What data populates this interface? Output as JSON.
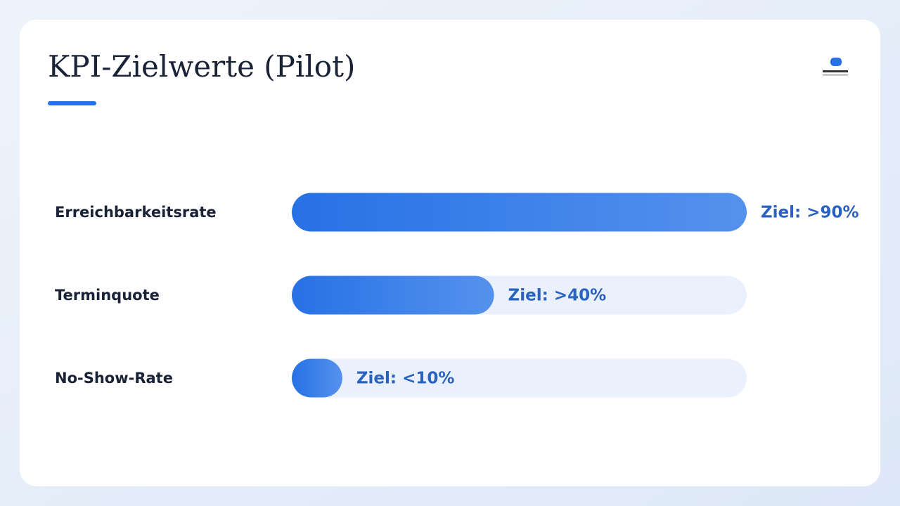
{
  "chart_data": {
    "type": "bar",
    "orientation": "horizontal",
    "title": "KPI-Zielwerte (Pilot)",
    "categories": [
      "Erreichbarkeitsrate",
      "Terminquote",
      "No-Show-Rate"
    ],
    "values": [
      90,
      40,
      10
    ],
    "value_labels": [
      "Ziel: >90%",
      "Ziel: >40%",
      "Ziel: <10%"
    ],
    "color": "#2771e6"
  }
}
